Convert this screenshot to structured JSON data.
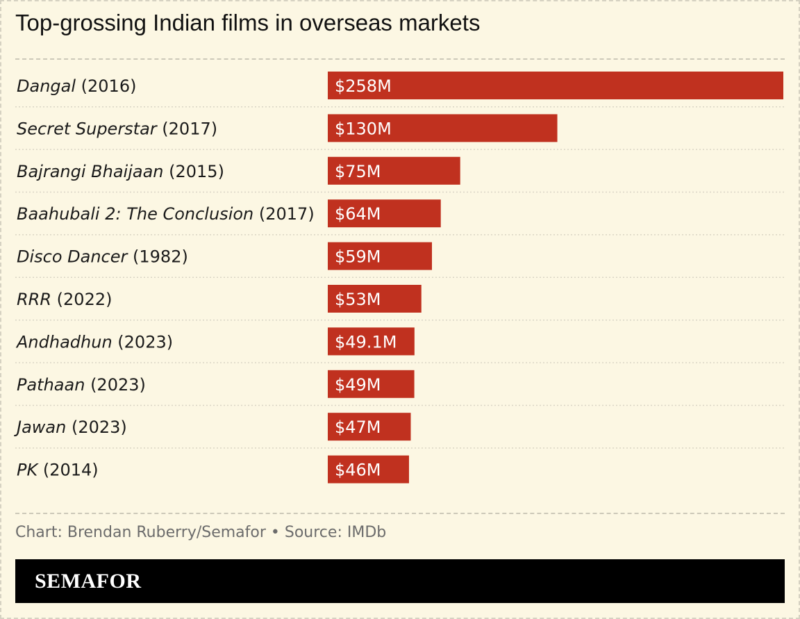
{
  "chart_data": {
    "type": "bar",
    "orientation": "horizontal",
    "title": "Top-grossing Indian films in overseas markets",
    "categories": [
      {
        "film": "Dangal",
        "year": "(2016)"
      },
      {
        "film": "Secret Superstar",
        "year": "(2017)"
      },
      {
        "film": "Bajrangi Bhaijaan",
        "year": "(2015)"
      },
      {
        "film": "Baahubali 2: The Conclusion",
        "year": "(2017)"
      },
      {
        "film": "Disco Dancer",
        "year": "(1982)"
      },
      {
        "film": "RRR",
        "year": "(2022)"
      },
      {
        "film": "Andhadhun",
        "year": "(2023)"
      },
      {
        "film": "Pathaan",
        "year": "(2023)"
      },
      {
        "film": "Jawan",
        "year": "(2023)"
      },
      {
        "film": "PK",
        "year": "(2014)"
      }
    ],
    "values": [
      258,
      130,
      75,
      64,
      59,
      53,
      49.1,
      49,
      47,
      46
    ],
    "value_labels": [
      "$258M",
      "$130M",
      "$75M",
      "$64M",
      "$59M",
      "$53M",
      "$49.1M",
      "$49M",
      "$47M",
      "$46M"
    ],
    "xlim": [
      0,
      258
    ],
    "grid": false,
    "bar_color": "#c0311f"
  },
  "source": "Chart: Brendan Ruberry/Semafor • Source: IMDb",
  "brand": "SEMAFOR"
}
